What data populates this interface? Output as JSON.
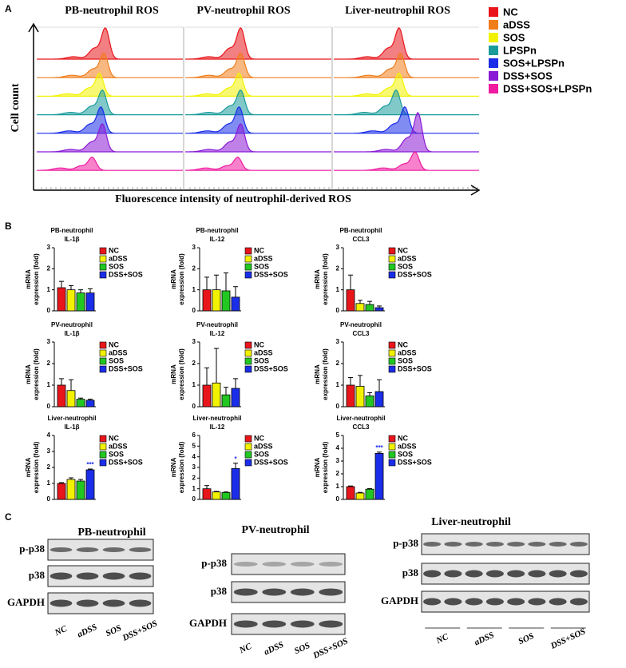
{
  "panel_labels": [
    "A",
    "B",
    "C"
  ],
  "panel_a": {
    "titles": [
      "PB-neutrophil ROS",
      "PV-neutrophil ROS",
      "Liver-neutrophil ROS"
    ],
    "y_label": "Cell count",
    "x_label": "Fluorescence intensity of neutrophil-derived ROS",
    "legend": [
      {
        "name": "NC",
        "color": "#e8161b"
      },
      {
        "name": "aDSS",
        "color": "#f07d1b"
      },
      {
        "name": "SOS",
        "color": "#f2f200"
      },
      {
        "name": "LPSPn",
        "color": "#1a9b9b"
      },
      {
        "name": "SOS+LPSPn",
        "color": "#1a2de8"
      },
      {
        "name": "DSS+SOS",
        "color": "#8a1ad6"
      },
      {
        "name": "DSS+SOS+LPSPn",
        "color": "#f01aa0"
      }
    ]
  },
  "chart_data": [
    {
      "type": "bar",
      "title": "PB-neutrophil",
      "subtitle": "IL-1β",
      "ylabel": [
        "mRNA",
        "expression (fold)"
      ],
      "categories": [
        "NC",
        "aDSS",
        "SOS",
        "DSS+SOS"
      ],
      "colors": [
        "#e8161b",
        "#f2f200",
        "#22c722",
        "#1a2de8"
      ],
      "values": [
        1.1,
        1.0,
        0.85,
        0.85
      ],
      "errors": [
        0.3,
        0.2,
        0.15,
        0.2
      ],
      "value_annotations": [
        null,
        null,
        null,
        null
      ],
      "ylim": [
        0,
        3
      ],
      "yticks": [
        0,
        1,
        2,
        3
      ]
    },
    {
      "type": "bar",
      "title": "PB-neutrophil",
      "subtitle": "IL-12",
      "ylabel": [
        "mRNA",
        "expression (fold)"
      ],
      "categories": [
        "NC",
        "aDSS",
        "SOS",
        "DSS+SOS"
      ],
      "colors": [
        "#e8161b",
        "#f2f200",
        "#22c722",
        "#1a2de8"
      ],
      "values": [
        1.0,
        1.0,
        0.95,
        0.65
      ],
      "errors": [
        0.6,
        0.7,
        0.85,
        0.5
      ],
      "value_annotations": [
        null,
        null,
        null,
        null
      ],
      "ylim": [
        0,
        3
      ],
      "yticks": [
        0,
        1,
        2,
        3
      ]
    },
    {
      "type": "bar",
      "title": "PB-neutrophil",
      "subtitle": "CCL3",
      "ylabel": [
        "mRNA",
        "expression (fold)"
      ],
      "categories": [
        "NC",
        "aDSS",
        "SOS",
        "DSS+SOS"
      ],
      "colors": [
        "#e8161b",
        "#f2f200",
        "#22c722",
        "#1a2de8"
      ],
      "values": [
        1.0,
        0.35,
        0.3,
        0.15
      ],
      "errors": [
        0.7,
        0.15,
        0.15,
        0.08
      ],
      "value_annotations": [
        null,
        null,
        null,
        null
      ],
      "ylim": [
        0,
        3
      ],
      "yticks": [
        0,
        1,
        2,
        3
      ]
    },
    {
      "type": "bar",
      "title": "PV-neutrophil",
      "subtitle": "IL-1β",
      "ylabel": [
        "mRNA",
        "expression (fold)"
      ],
      "categories": [
        "NC",
        "aDSS",
        "SOS",
        "DSS+SOS"
      ],
      "colors": [
        "#e8161b",
        "#f2f200",
        "#22c722",
        "#1a2de8"
      ],
      "values": [
        1.0,
        0.75,
        0.35,
        0.3
      ],
      "errors": [
        0.3,
        0.5,
        0.05,
        0.05
      ],
      "value_annotations": [
        null,
        null,
        null,
        null
      ],
      "ylim": [
        0,
        3
      ],
      "yticks": [
        0,
        1,
        2,
        3
      ]
    },
    {
      "type": "bar",
      "title": "PV-neutrophil",
      "subtitle": "IL-12",
      "ylabel": [
        "mRNA",
        "expression (fold)"
      ],
      "categories": [
        "NC",
        "aDSS",
        "SOS",
        "DSS+SOS"
      ],
      "colors": [
        "#e8161b",
        "#f2f200",
        "#22c722",
        "#1a2de8"
      ],
      "values": [
        1.0,
        1.1,
        0.55,
        0.85
      ],
      "errors": [
        0.8,
        1.6,
        0.35,
        0.45
      ],
      "value_annotations": [
        null,
        null,
        null,
        null
      ],
      "ylim": [
        0,
        3
      ],
      "yticks": [
        0,
        1,
        2,
        3
      ]
    },
    {
      "type": "bar",
      "title": "PV-neutrophil",
      "subtitle": "CCL3",
      "ylabel": [
        "mRNA",
        "expression (fold)"
      ],
      "categories": [
        "NC",
        "aDSS",
        "SOS",
        "DSS+SOS"
      ],
      "colors": [
        "#e8161b",
        "#f2f200",
        "#22c722",
        "#1a2de8"
      ],
      "values": [
        1.0,
        0.95,
        0.5,
        0.7
      ],
      "errors": [
        0.35,
        0.5,
        0.15,
        0.55
      ],
      "value_annotations": [
        null,
        null,
        null,
        null
      ],
      "ylim": [
        0,
        3
      ],
      "yticks": [
        0,
        1,
        2,
        3
      ]
    },
    {
      "type": "bar",
      "title": "Liver-neutrophil",
      "subtitle": "IL-1β",
      "ylabel": [
        "mRNA",
        "expression (fold)"
      ],
      "categories": [
        "NC",
        "aDSS",
        "SOS",
        "DSS+SOS"
      ],
      "colors": [
        "#e8161b",
        "#f2f200",
        "#22c722",
        "#1a2de8"
      ],
      "values": [
        1.0,
        1.25,
        1.15,
        1.85
      ],
      "errors": [
        0.05,
        0.1,
        0.1,
        0.05
      ],
      "value_annotations": [
        null,
        null,
        null,
        "***"
      ],
      "ylim": [
        0,
        4
      ],
      "yticks": [
        0,
        1,
        2,
        3,
        4
      ]
    },
    {
      "type": "bar",
      "title": "Liver-neutrophil",
      "subtitle": "IL-12",
      "ylabel": [
        "mRNA",
        "expression (fold)"
      ],
      "categories": [
        "NC",
        "aDSS",
        "SOS",
        "DSS+SOS"
      ],
      "colors": [
        "#e8161b",
        "#f2f200",
        "#22c722",
        "#1a2de8"
      ],
      "values": [
        1.0,
        0.7,
        0.65,
        2.9
      ],
      "errors": [
        0.3,
        0.05,
        0.05,
        0.5
      ],
      "value_annotations": [
        null,
        null,
        null,
        "*"
      ],
      "ylim": [
        0,
        6
      ],
      "yticks": [
        0,
        1,
        2,
        3,
        4,
        5,
        6
      ]
    },
    {
      "type": "bar",
      "title": "Liver-neutrophil",
      "subtitle": "CCL3",
      "ylabel": [
        "mRNA",
        "expression (fold)"
      ],
      "categories": [
        "NC",
        "aDSS",
        "SOS",
        "DSS+SOS"
      ],
      "colors": [
        "#e8161b",
        "#f2f200",
        "#22c722",
        "#1a2de8"
      ],
      "values": [
        1.0,
        0.5,
        0.8,
        3.6
      ],
      "errors": [
        0.05,
        0.05,
        0.05,
        0.1
      ],
      "value_annotations": [
        null,
        null,
        null,
        "***"
      ],
      "ylim": [
        0,
        5
      ],
      "yticks": [
        0,
        1,
        2,
        3,
        4,
        5
      ]
    }
  ],
  "panel_c": {
    "blots": [
      {
        "title": "PB-neutrophil",
        "rows": [
          "p-p38",
          "p38",
          "GAPDH"
        ],
        "lanes": [
          "NC",
          "aDSS",
          "SOS",
          "DSS+SOS"
        ]
      },
      {
        "title": "PV-neutrophil",
        "rows": [
          "p-p38",
          "p38",
          "GAPDH"
        ],
        "lanes": [
          "NC",
          "aDSS",
          "SOS",
          "DSS+SOS"
        ]
      },
      {
        "title": "Liver-neutrophil",
        "rows": [
          "p-p38",
          "p38",
          "GAPDH"
        ],
        "lanes": [
          "NC",
          "aDSS",
          "SOS",
          "DSS+SOS"
        ]
      }
    ]
  }
}
